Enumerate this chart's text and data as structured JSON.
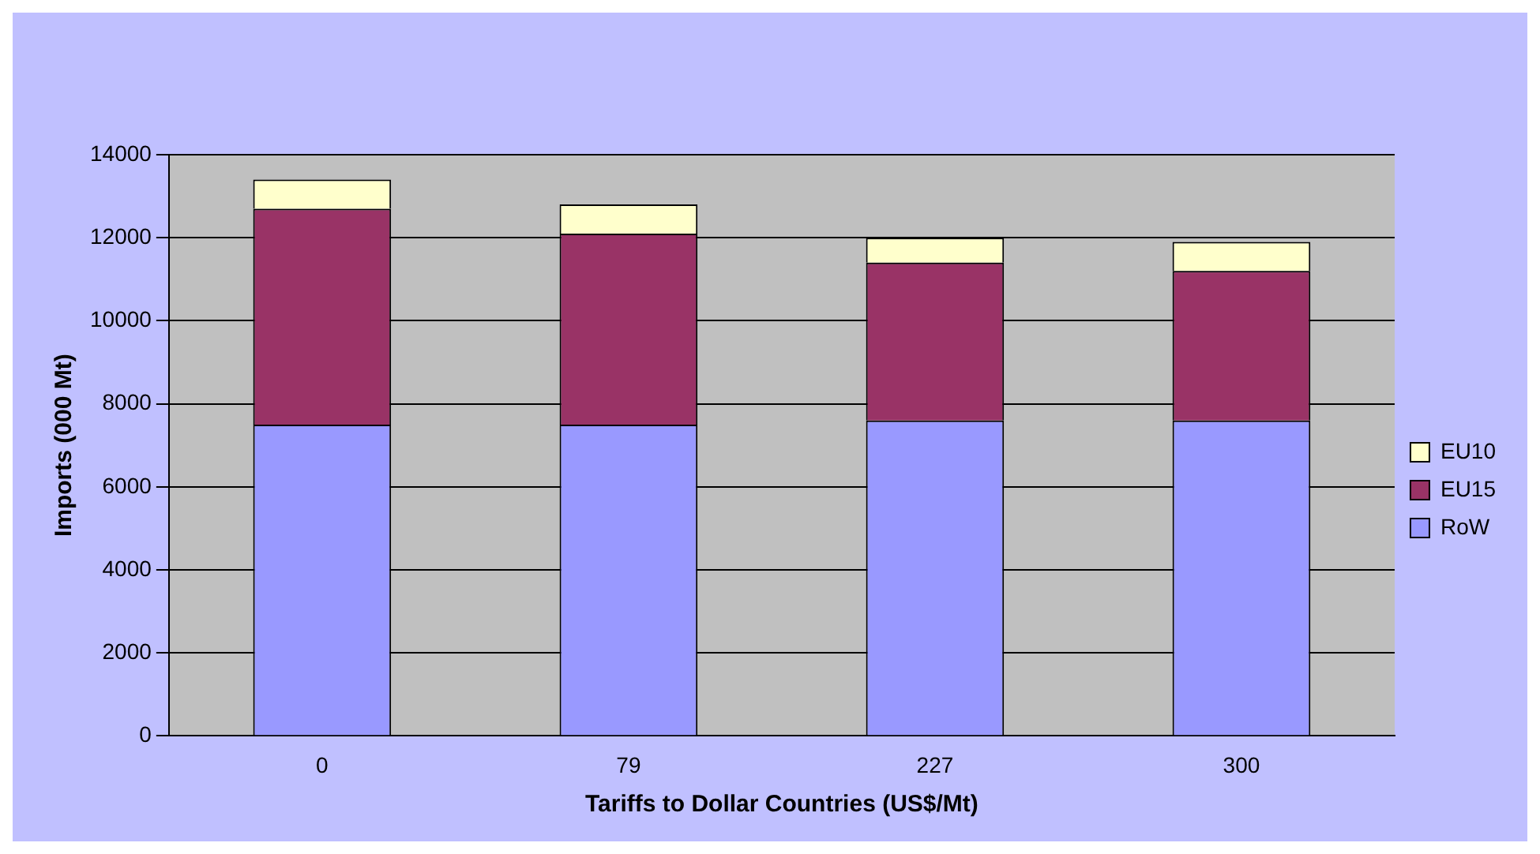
{
  "chart_data": {
    "type": "bar",
    "stacked": true,
    "xlabel": "Tariffs to Dollar Countries (US$/Mt)",
    "ylabel": "Imports (000 Mt)",
    "categories": [
      "0",
      "79",
      "227",
      "300"
    ],
    "series": [
      {
        "name": "RoW",
        "color": "#9999ff",
        "values": [
          7500,
          7500,
          7600,
          7600
        ]
      },
      {
        "name": "EU15",
        "color": "#993366",
        "values": [
          5200,
          4600,
          3800,
          3600
        ]
      },
      {
        "name": "EU10",
        "color": "#ffffcc",
        "values": [
          700,
          700,
          600,
          700
        ]
      }
    ],
    "ylim": [
      0,
      14000
    ],
    "yticks": [
      0,
      2000,
      4000,
      6000,
      8000,
      10000,
      12000,
      14000
    ],
    "grid": "y",
    "legend": "right"
  }
}
